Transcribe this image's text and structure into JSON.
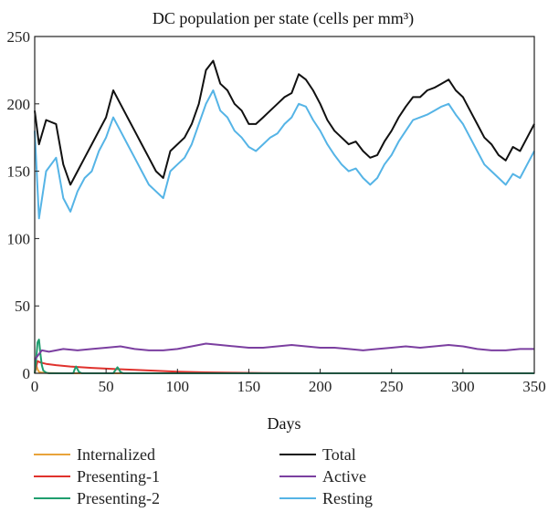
{
  "chart_data": {
    "type": "line",
    "title": "DC population per state (cells per mm³)",
    "xlabel": "Days",
    "ylabel": "",
    "xlim": [
      0,
      350
    ],
    "ylim": [
      0,
      250
    ],
    "xticks": [
      0,
      50,
      100,
      150,
      200,
      250,
      300,
      350
    ],
    "yticks": [
      0,
      50,
      100,
      150,
      200,
      250
    ],
    "grid": false,
    "legend_position": "bottom",
    "series": [
      {
        "name": "Internalized",
        "color": "#e8a33a",
        "x": [
          0,
          1,
          2,
          3,
          5,
          8,
          10,
          20,
          50,
          100,
          200,
          300,
          350
        ],
        "y": [
          0,
          6,
          3,
          1,
          0.5,
          0.3,
          0.2,
          0,
          0,
          0,
          0,
          0,
          0
        ]
      },
      {
        "name": "Presenting-1",
        "color": "#e0322d",
        "x": [
          0,
          2,
          4,
          8,
          15,
          25,
          40,
          55,
          70,
          85,
          100,
          120,
          140,
          160,
          200,
          250,
          300,
          350
        ],
        "y": [
          0,
          9,
          8,
          7,
          6,
          5,
          4,
          3.2,
          2.5,
          1.8,
          1.2,
          0.7,
          0.4,
          0.2,
          0,
          0,
          0,
          0
        ]
      },
      {
        "name": "Presenting-2",
        "color": "#1f9e6e",
        "x": [
          0,
          1,
          2,
          3,
          4,
          5,
          6,
          8,
          10,
          27,
          28,
          29,
          30,
          31,
          33,
          55,
          57,
          58,
          59,
          60,
          62,
          80,
          150,
          250,
          350
        ],
        "y": [
          0,
          10,
          23,
          25,
          14,
          6,
          2,
          0.5,
          0,
          0,
          3,
          5,
          3,
          1,
          0,
          0,
          3,
          4.5,
          3,
          1,
          0,
          0,
          0,
          0,
          0
        ]
      },
      {
        "name": "Total",
        "color": "#111111",
        "x": [
          0,
          3,
          8,
          15,
          20,
          25,
          30,
          35,
          40,
          45,
          50,
          55,
          60,
          65,
          70,
          75,
          80,
          85,
          90,
          95,
          100,
          105,
          110,
          115,
          120,
          125,
          130,
          135,
          140,
          145,
          150,
          155,
          160,
          165,
          170,
          175,
          180,
          185,
          190,
          195,
          200,
          205,
          210,
          215,
          220,
          225,
          230,
          235,
          240,
          245,
          250,
          255,
          260,
          265,
          270,
          275,
          280,
          285,
          290,
          295,
          300,
          305,
          310,
          315,
          320,
          325,
          330,
          335,
          340,
          345,
          350
        ],
        "y": [
          195,
          170,
          188,
          185,
          155,
          140,
          150,
          160,
          170,
          180,
          190,
          210,
          200,
          190,
          180,
          170,
          160,
          150,
          145,
          165,
          170,
          175,
          185,
          200,
          225,
          232,
          215,
          210,
          200,
          195,
          185,
          185,
          190,
          195,
          200,
          205,
          208,
          222,
          218,
          210,
          200,
          188,
          180,
          175,
          170,
          172,
          165,
          160,
          162,
          172,
          180,
          190,
          198,
          205,
          205,
          210,
          212,
          215,
          218,
          210,
          205,
          195,
          185,
          175,
          170,
          162,
          158,
          168,
          165,
          175,
          185
        ]
      },
      {
        "name": "Active",
        "color": "#7b3fa0",
        "x": [
          0,
          5,
          10,
          20,
          30,
          40,
          50,
          60,
          70,
          80,
          90,
          100,
          110,
          120,
          130,
          140,
          150,
          160,
          170,
          180,
          190,
          200,
          210,
          220,
          230,
          240,
          250,
          260,
          270,
          280,
          290,
          300,
          310,
          320,
          330,
          340,
          350
        ],
        "y": [
          10,
          17,
          16,
          18,
          17,
          18,
          19,
          20,
          18,
          17,
          17,
          18,
          20,
          22,
          21,
          20,
          19,
          19,
          20,
          21,
          20,
          19,
          19,
          18,
          17,
          18,
          19,
          20,
          19,
          20,
          21,
          20,
          18,
          17,
          17,
          18,
          18
        ]
      },
      {
        "name": "Resting",
        "color": "#55b4e6",
        "x": [
          0,
          3,
          8,
          15,
          20,
          25,
          30,
          35,
          40,
          45,
          50,
          55,
          60,
          65,
          70,
          75,
          80,
          85,
          90,
          95,
          100,
          105,
          110,
          115,
          120,
          125,
          130,
          135,
          140,
          145,
          150,
          155,
          160,
          165,
          170,
          175,
          180,
          185,
          190,
          195,
          200,
          205,
          210,
          215,
          220,
          225,
          230,
          235,
          240,
          245,
          250,
          255,
          260,
          265,
          270,
          275,
          280,
          285,
          290,
          295,
          300,
          305,
          310,
          315,
          320,
          325,
          330,
          335,
          340,
          345,
          350
        ],
        "y": [
          180,
          115,
          150,
          160,
          130,
          120,
          135,
          145,
          150,
          165,
          175,
          190,
          180,
          170,
          160,
          150,
          140,
          135,
          130,
          150,
          155,
          160,
          170,
          185,
          200,
          210,
          195,
          190,
          180,
          175,
          168,
          165,
          170,
          175,
          178,
          185,
          190,
          200,
          198,
          188,
          180,
          170,
          162,
          155,
          150,
          152,
          145,
          140,
          145,
          155,
          162,
          172,
          180,
          188,
          190,
          192,
          195,
          198,
          200,
          192,
          185,
          175,
          165,
          155,
          150,
          145,
          140,
          148,
          145,
          155,
          165
        ]
      }
    ]
  }
}
